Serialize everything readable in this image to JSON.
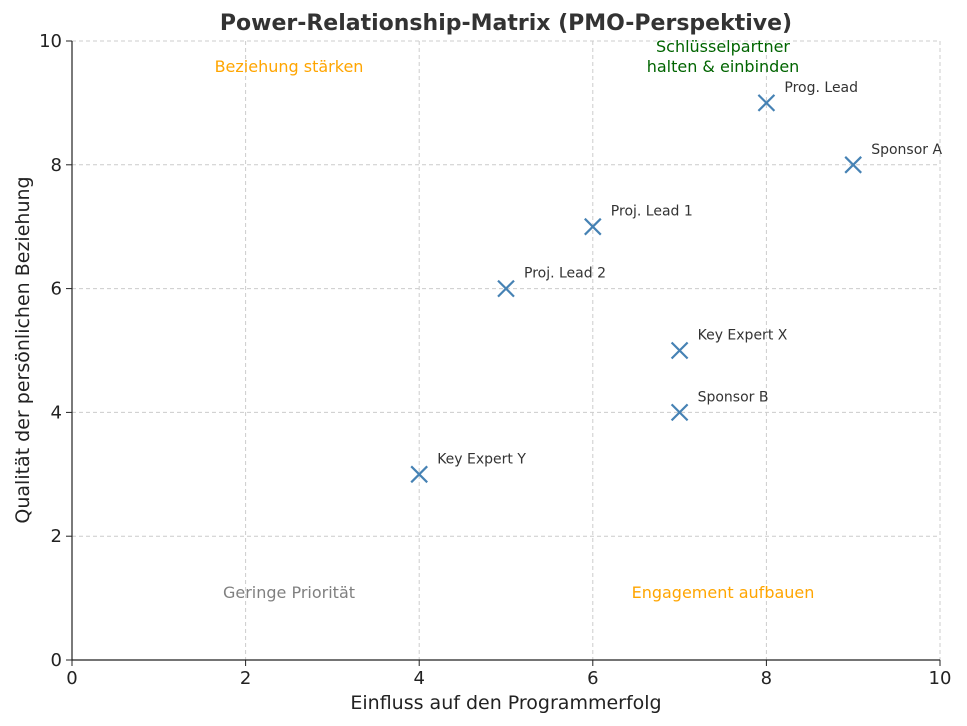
{
  "chart_data": {
    "type": "scatter",
    "title": "Power-Relationship-Matrix (PMO-Perspektive)",
    "xlabel": "Einfluss auf den Programmerfolg",
    "ylabel": "Qualität der persönlichen Beziehung",
    "xlim": [
      0,
      10
    ],
    "ylim": [
      0,
      10
    ],
    "xticks": [
      "0",
      "2",
      "4",
      "6",
      "8",
      "10"
    ],
    "yticks": [
      "0",
      "2",
      "4",
      "6",
      "8",
      "10"
    ],
    "grid": true,
    "marker": "x",
    "marker_color": "#4682b4",
    "points": [
      {
        "label": "Prog. Lead",
        "x": 8,
        "y": 9
      },
      {
        "label": "Sponsor A",
        "x": 9,
        "y": 8
      },
      {
        "label": "Proj. Lead 1",
        "x": 6,
        "y": 7
      },
      {
        "label": "Proj. Lead 2",
        "x": 5,
        "y": 6
      },
      {
        "label": "Key Expert X",
        "x": 7,
        "y": 5
      },
      {
        "label": "Sponsor B",
        "x": 7,
        "y": 4
      },
      {
        "label": "Key Expert Y",
        "x": 4,
        "y": 3
      }
    ],
    "annotations": [
      {
        "lines": [
          "Beziehung stärken"
        ],
        "x": 2.5,
        "y": 9.6,
        "color": "#ffa500"
      },
      {
        "lines": [
          "Schlüsselpartner",
          "halten & einbinden"
        ],
        "x": 7.5,
        "y": 9.6,
        "color": "#006400"
      },
      {
        "lines": [
          "Geringe Priorität"
        ],
        "x": 2.5,
        "y": 1.1,
        "color": "#808080"
      },
      {
        "lines": [
          "Engagement aufbauen"
        ],
        "x": 7.5,
        "y": 1.1,
        "color": "#ffa500"
      }
    ]
  }
}
